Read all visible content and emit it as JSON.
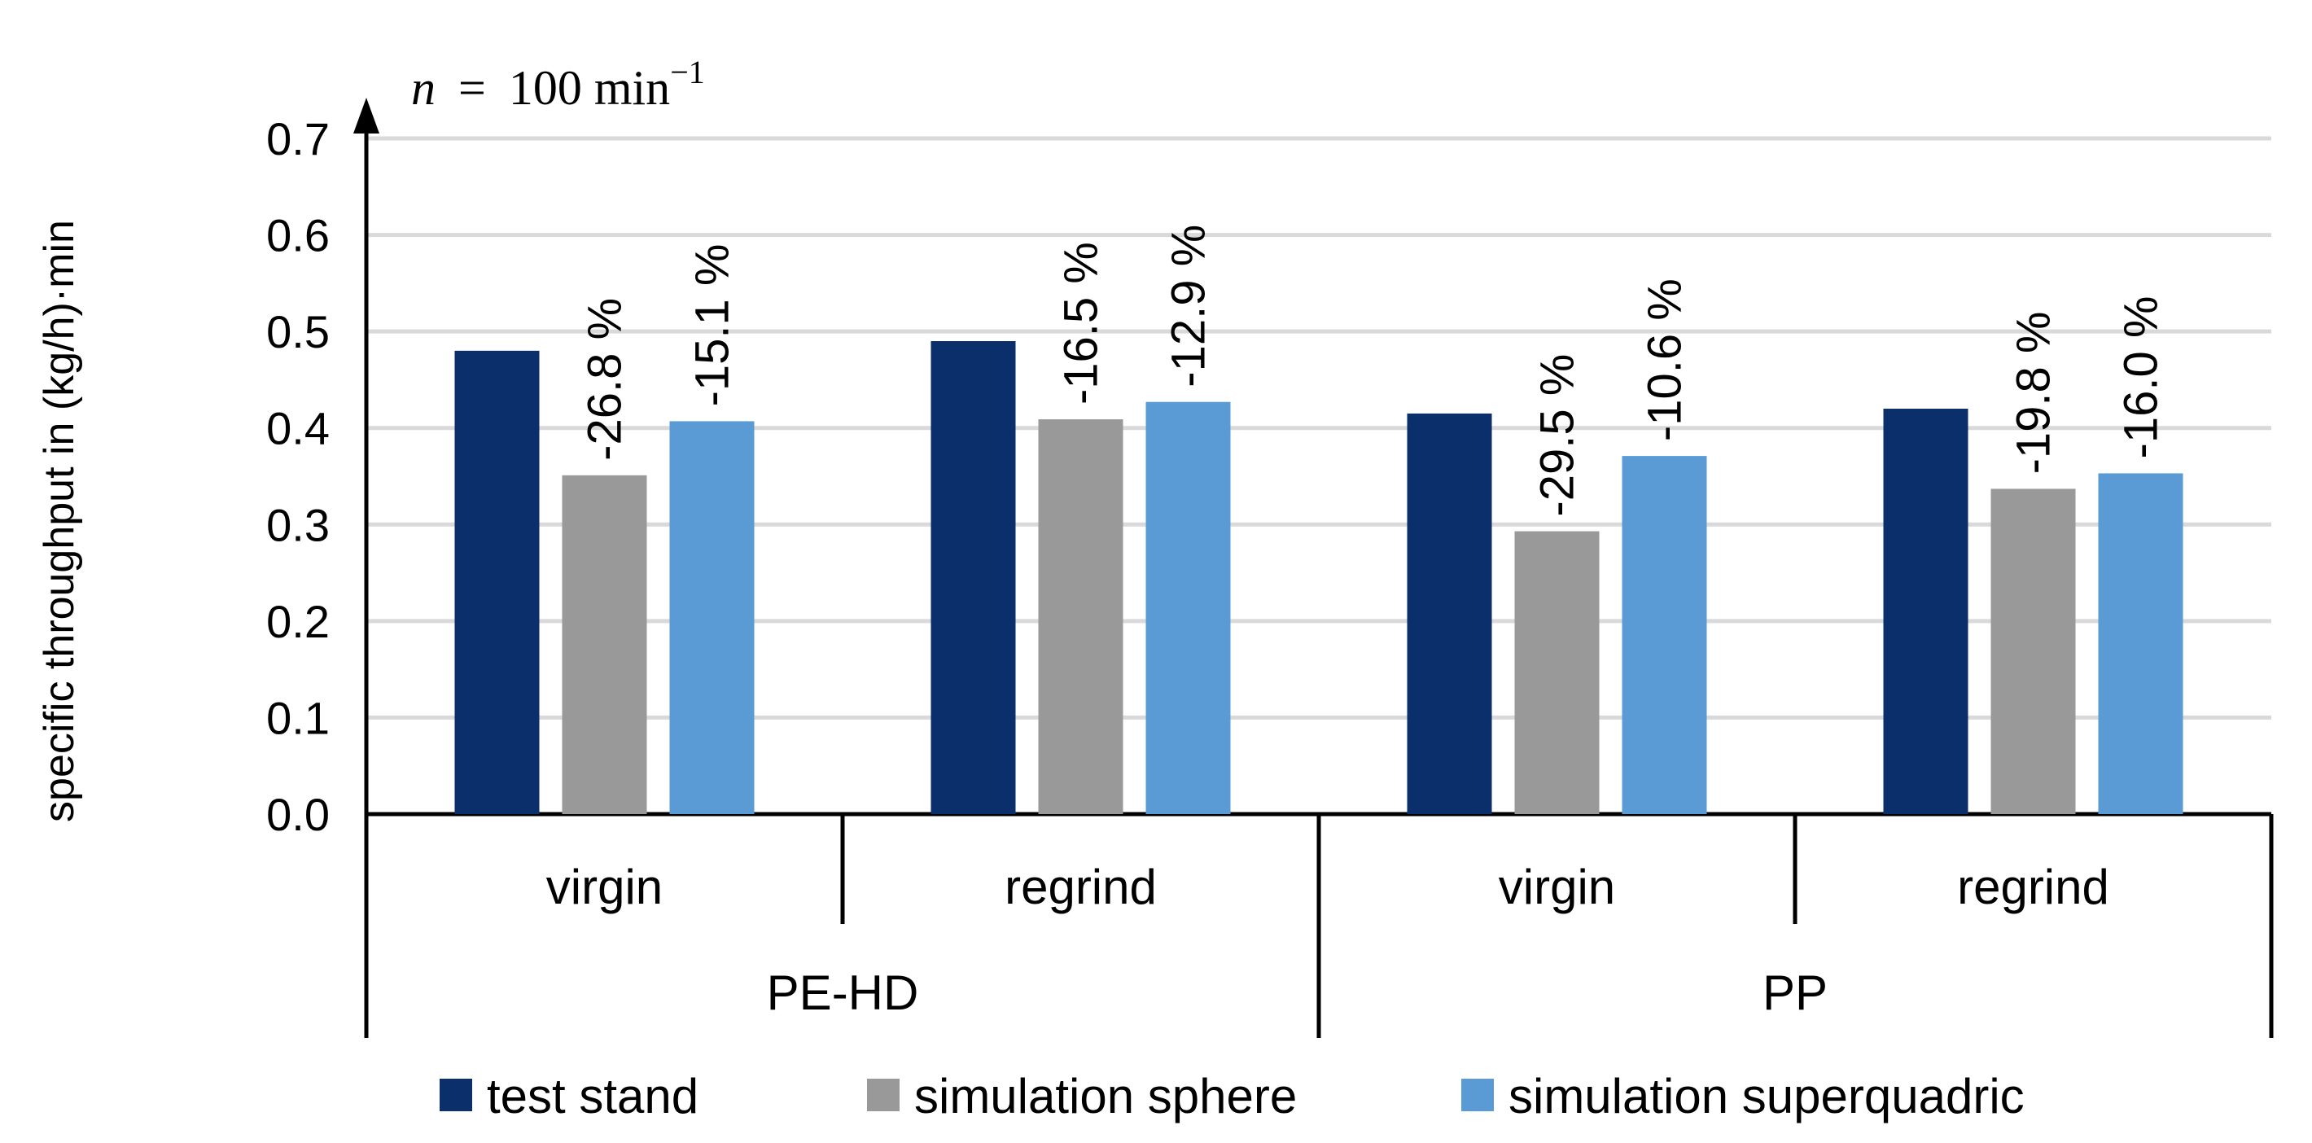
{
  "chart_data": {
    "type": "bar",
    "title": "",
    "ylabel": "specific throughput in (kg/h)·min",
    "annotation": {
      "prefix": "n  =  100 min",
      "superscript": "−1"
    },
    "ylim": [
      0,
      0.7
    ],
    "yticks": [
      "0.0",
      "0.1",
      "0.2",
      "0.3",
      "0.4",
      "0.5",
      "0.6",
      "0.7"
    ],
    "ytick_values": [
      0,
      0.1,
      0.2,
      0.3,
      0.4,
      0.5,
      0.6,
      0.7
    ],
    "grid": true,
    "categories": [
      "virgin",
      "regrind",
      "virgin",
      "regrind"
    ],
    "groups": [
      "PE-HD",
      "PP"
    ],
    "series": [
      {
        "name": "test stand",
        "color": "#0b2f6b",
        "values": [
          0.48,
          0.49,
          0.415,
          0.42
        ],
        "labels": [
          "",
          "",
          "",
          ""
        ]
      },
      {
        "name": "simulation sphere",
        "color": "#999999",
        "values": [
          0.351,
          0.409,
          0.293,
          0.337
        ],
        "labels": [
          "-26.8 %",
          "-16.5 %",
          "-29.5 %",
          "-19.8 %"
        ]
      },
      {
        "name": "simulation superquadric",
        "color": "#5b9bd5",
        "values": [
          0.407,
          0.427,
          0.371,
          0.353
        ],
        "labels": [
          "-15.1 %",
          "-12.9 %",
          "-10.6 %",
          "-16.0 %"
        ]
      }
    ],
    "legend_position": "bottom"
  }
}
